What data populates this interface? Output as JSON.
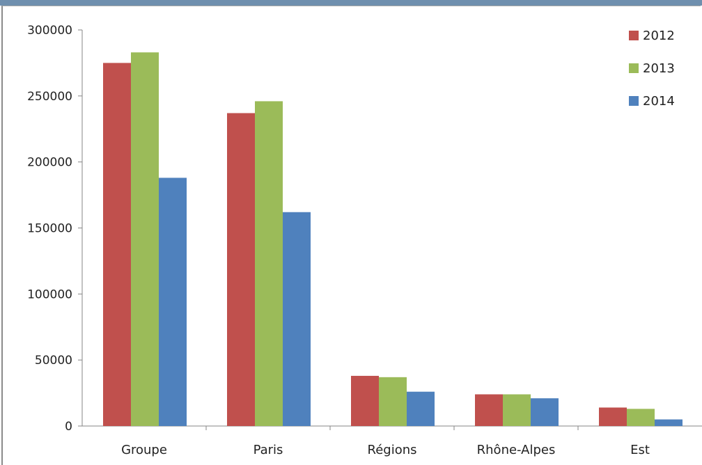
{
  "chart_data": {
    "type": "bar",
    "categories": [
      "Groupe",
      "Paris",
      "Régions",
      "Rhône-Alpes",
      "Est"
    ],
    "series": [
      {
        "name": "2012",
        "color": "#c0504d",
        "values": [
          275000,
          237000,
          38000,
          24000,
          14000
        ]
      },
      {
        "name": "2013",
        "color": "#9bbb59",
        "values": [
          283000,
          246000,
          37000,
          24000,
          13000
        ]
      },
      {
        "name": "2014",
        "color": "#4f81bd",
        "values": [
          188000,
          162000,
          26000,
          21000,
          5000
        ]
      }
    ],
    "yticks": [
      "0",
      "50000",
      "100000",
      "150000",
      "200000",
      "250000",
      "300000"
    ],
    "ylim": [
      0,
      300000
    ],
    "grid": false,
    "legend": "top-right"
  }
}
